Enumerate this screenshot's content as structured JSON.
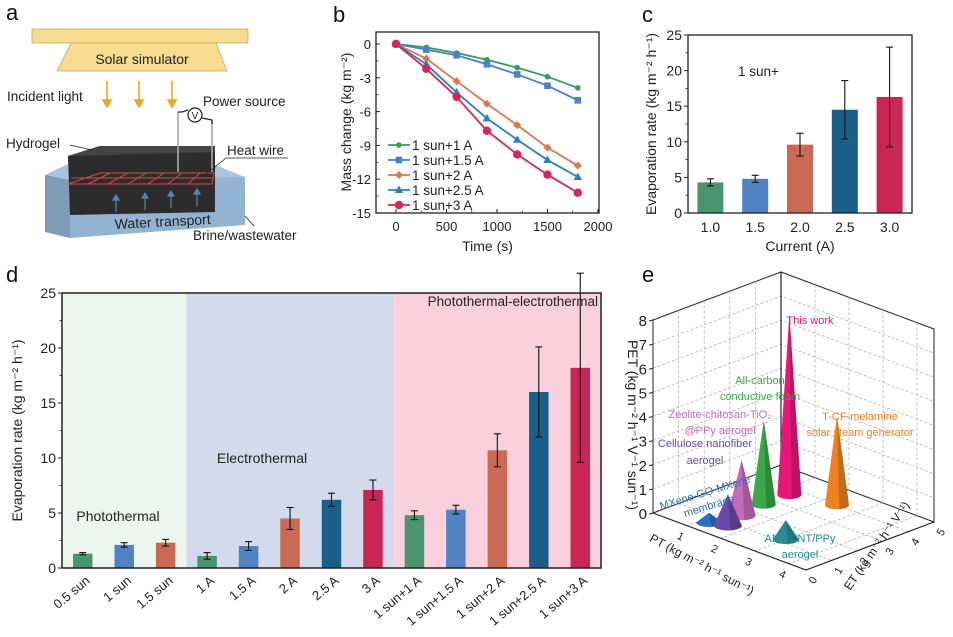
{
  "panels": {
    "a": {
      "letter": "a",
      "solar_simulator": "Solar simulator",
      "incident_light": "Incident light",
      "power_source": "Power source",
      "voltmeter_symbol": "V",
      "hydrogel": "Hydrogel",
      "heat_wire": "Heat wire",
      "water_transport": "Water transport",
      "brine": "Brine/wastewater"
    },
    "b": {
      "letter": "b"
    },
    "c": {
      "letter": "c",
      "annotation": "1 sun+"
    },
    "d": {
      "letter": "d",
      "regions": [
        {
          "name": "Photothermal",
          "color": "#edf5ef"
        },
        {
          "name": "Electrothermal",
          "color": "#d2daec"
        },
        {
          "name": "Photothermal-electrothermal",
          "color": "#f9d0dc"
        }
      ]
    },
    "e": {
      "letter": "e"
    }
  },
  "colors": {
    "green": "#4a9470",
    "blue": "#4f83c4",
    "orange": "#c96b54",
    "navy": "#1a5f8a",
    "crimson": "#c92655",
    "line_green": "#3a9a5c",
    "line_blue": "#4a80cc",
    "line_orange": "#d9784e",
    "line_navy": "#2f7fc0",
    "line_crimson": "#d6265a"
  },
  "chart_data": [
    {
      "panel": "b",
      "type": "line",
      "title": "",
      "xlabel": "Time (s)",
      "ylabel": "Mass change (kg m⁻²)",
      "xlim": [
        -130,
        2000
      ],
      "ylim": [
        -15,
        1
      ],
      "xticks": [
        0,
        500,
        1000,
        1500,
        2000
      ],
      "yticks": [
        0,
        -3,
        -6,
        -9,
        -12,
        -15
      ],
      "legend": "bottom-left",
      "x": [
        0,
        300,
        600,
        900,
        1200,
        1500,
        1800
      ],
      "series": [
        {
          "name": "1 sun+1 A",
          "marker": "circle-small",
          "color": "#3a9a5c",
          "values": [
            0,
            -0.3,
            -0.8,
            -1.4,
            -2.1,
            -2.9,
            -3.9
          ]
        },
        {
          "name": "1 sun+1.5 A",
          "marker": "square",
          "color": "#4a80cc",
          "values": [
            0,
            -0.5,
            -1.0,
            -1.8,
            -2.7,
            -3.7,
            -5.0
          ]
        },
        {
          "name": "1 sun+2 A",
          "marker": "diamond",
          "color": "#d9784e",
          "values": [
            0,
            -1.3,
            -3.3,
            -5.3,
            -7.2,
            -9.2,
            -10.8
          ]
        },
        {
          "name": "1 sun+2.5 A",
          "marker": "triangle",
          "color": "#2f7fc0",
          "values": [
            0,
            -1.8,
            -4.3,
            -6.6,
            -8.5,
            -10.3,
            -11.8
          ]
        },
        {
          "name": "1 sun+3 A",
          "marker": "circle",
          "color": "#d6265a",
          "values": [
            0,
            -2.2,
            -4.7,
            -7.7,
            -9.8,
            -11.6,
            -13.2
          ]
        }
      ]
    },
    {
      "panel": "c",
      "type": "bar",
      "title": "",
      "xlabel": "Current (A)",
      "ylabel": "Evaporation rate (kg m⁻² h⁻¹)",
      "ylim": [
        0,
        25
      ],
      "yticks": [
        0,
        5,
        10,
        15,
        20,
        25
      ],
      "categories": [
        "1.0",
        "1.5",
        "2.0",
        "2.5",
        "3.0"
      ],
      "values": [
        4.3,
        4.8,
        9.6,
        14.5,
        16.3
      ],
      "errors": [
        0.5,
        0.5,
        1.6,
        4.1,
        7.0
      ],
      "colors": [
        "#4a9470",
        "#4f83c4",
        "#c96b54",
        "#1a5f8a",
        "#c92655"
      ]
    },
    {
      "panel": "d",
      "type": "bar",
      "title": "",
      "xlabel": "",
      "ylabel": "Evaporation rate (kg m⁻² h⁻¹)",
      "ylim": [
        0,
        25
      ],
      "yticks": [
        0,
        5,
        10,
        15,
        20,
        25
      ],
      "categories": [
        "0.5 sun",
        "1 sun",
        "1.5 sun",
        "1 A",
        "1.5 A",
        "2 A",
        "2.5 A",
        "3 A",
        "1 sun+1 A",
        "1 sun+1.5 A",
        "1 sun+2 A",
        "1 sun+2.5 A",
        "1 sun+3 A"
      ],
      "values": [
        1.3,
        2.1,
        2.3,
        1.1,
        2.0,
        4.5,
        6.2,
        7.1,
        4.8,
        5.3,
        10.7,
        16.0,
        18.2
      ],
      "errors": [
        0.1,
        0.2,
        0.3,
        0.3,
        0.4,
        1.0,
        0.6,
        0.9,
        0.4,
        0.4,
        1.5,
        4.1,
        8.6
      ],
      "colors": [
        "#4a9470",
        "#4f83c4",
        "#c96b54",
        "#4a9470",
        "#4f83c4",
        "#c96b54",
        "#1a5f8a",
        "#c92655",
        "#4a9470",
        "#4f83c4",
        "#c96b54",
        "#1a5f8a",
        "#c92655"
      ],
      "region_spans": [
        [
          0,
          2
        ],
        [
          3,
          7
        ],
        [
          8,
          12
        ]
      ]
    },
    {
      "panel": "e",
      "type": "scatter",
      "subtype": "3d-cone",
      "title": "",
      "xlabel": "PT (kg m⁻² h⁻¹ sun⁻¹)",
      "ylabel": "ET (kg m⁻² h⁻¹ V⁻¹)",
      "zlabel": "PET (kg m⁻² h⁻¹ V⁻¹ sun⁻¹)",
      "xlim": [
        0,
        4.5
      ],
      "ylim": [
        0,
        5
      ],
      "zlim": [
        0,
        8
      ],
      "xticks": [
        1,
        2,
        3,
        4
      ],
      "yticks": [
        0,
        1,
        2,
        3,
        4,
        5
      ],
      "zticks": [
        0,
        1,
        2,
        3,
        4,
        5,
        6,
        7,
        8
      ],
      "points": [
        {
          "label": "MXene-GO-MXene membrane",
          "x": 1.2,
          "y": 0.6,
          "z": 0.4,
          "color": "#2e6ec0"
        },
        {
          "label": "Cellulose nanofiber aerogel",
          "x": 1.6,
          "y": 0.8,
          "z": 1.3,
          "color": "#6a4aa8"
        },
        {
          "label": "Zeolite-chitosan-TiO₂@PPy aerogel",
          "x": 1.4,
          "y": 1.6,
          "z": 2.3,
          "color": "#c56abc"
        },
        {
          "label": "All-carbon conductive foam",
          "x": 1.3,
          "y": 2.6,
          "z": 3.5,
          "color": "#3aaa48"
        },
        {
          "label": "This work",
          "x": 1.3,
          "y": 3.6,
          "z": 7.5,
          "color": "#e8187a"
        },
        {
          "label": "T-CF-melamine solar steam generator",
          "x": 2.4,
          "y": 4.0,
          "z": 3.7,
          "color": "#f08020"
        },
        {
          "label": "ANF/CNT/PPy aerogel",
          "x": 3.0,
          "y": 1.2,
          "z": 0.8,
          "color": "#2a8a96"
        }
      ]
    }
  ]
}
